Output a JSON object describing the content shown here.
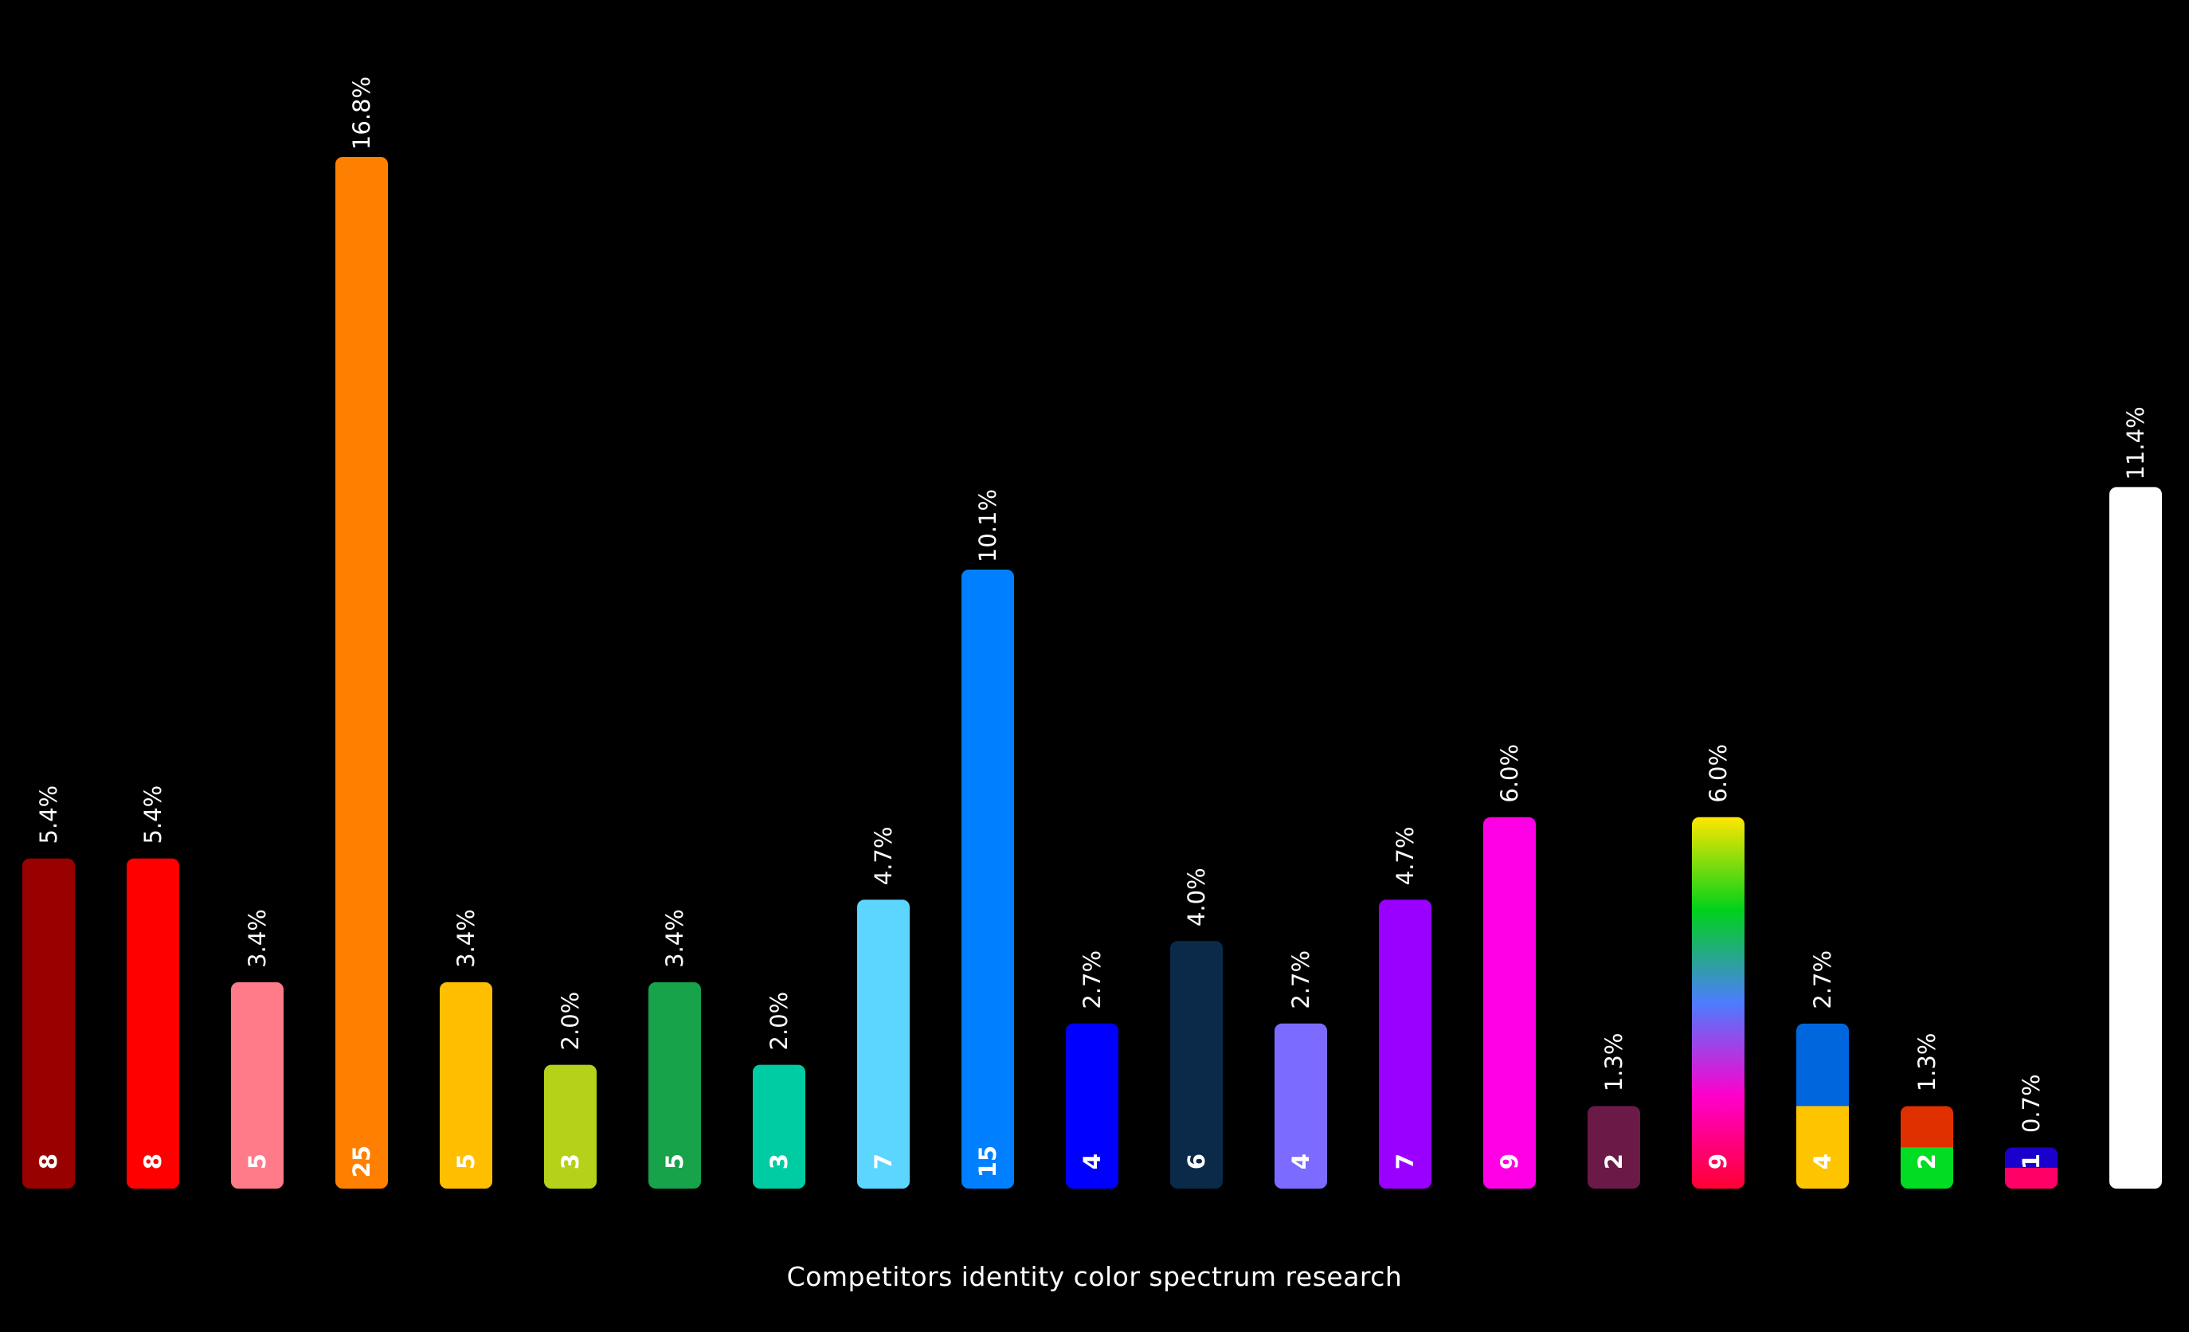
{
  "chart_data": {
    "type": "bar",
    "title": "Competitors identity color spectrum research",
    "xlabel": "",
    "ylabel": "",
    "ylim": [
      0,
      25
    ],
    "grid": false,
    "legend": "none",
    "bars": [
      {
        "value": 8,
        "label": "8",
        "percent": "5.4%",
        "fill": [
          "#990000"
        ]
      },
      {
        "value": 8,
        "label": "8",
        "percent": "5.4%",
        "fill": [
          "#ff0000"
        ]
      },
      {
        "value": 5,
        "label": "5",
        "percent": "3.4%",
        "fill": [
          "#ff7b8a"
        ]
      },
      {
        "value": 25,
        "label": "25",
        "percent": "16.8%",
        "fill": [
          "#ff8000"
        ]
      },
      {
        "value": 5,
        "label": "5",
        "percent": "3.4%",
        "fill": [
          "#ffbf00"
        ]
      },
      {
        "value": 3,
        "label": "3",
        "percent": "2.0%",
        "fill": [
          "#b5d11a"
        ]
      },
      {
        "value": 5,
        "label": "5",
        "percent": "3.4%",
        "fill": [
          "#16a34a"
        ]
      },
      {
        "value": 3,
        "label": "3",
        "percent": "2.0%",
        "fill": [
          "#00cca3"
        ]
      },
      {
        "value": 7,
        "label": "7",
        "percent": "4.7%",
        "fill": [
          "#5cd6ff"
        ]
      },
      {
        "value": 15,
        "label": "15",
        "percent": "10.1%",
        "fill": [
          "#0080ff"
        ]
      },
      {
        "value": 4,
        "label": "4",
        "percent": "2.7%",
        "fill": [
          "#0000ff"
        ]
      },
      {
        "value": 6,
        "label": "6",
        "percent": "4.0%",
        "fill": [
          "#0b2a4a"
        ]
      },
      {
        "value": 4,
        "label": "4",
        "percent": "2.7%",
        "fill": [
          "#7b6cff"
        ]
      },
      {
        "value": 7,
        "label": "7",
        "percent": "4.7%",
        "fill": [
          "#9900ff"
        ]
      },
      {
        "value": 9,
        "label": "9",
        "percent": "6.0%",
        "fill": [
          "#ff00e6"
        ]
      },
      {
        "value": 2,
        "label": "2",
        "percent": "1.3%",
        "fill": [
          "#6b1a47"
        ]
      },
      {
        "value": 9,
        "label": "9",
        "percent": "6.0%",
        "fill": [
          "#ffe600",
          "#00d21a",
          "#4d7cff",
          "#ff00cc",
          "#ff0033"
        ],
        "fill_style": "gradient"
      },
      {
        "value": 4,
        "label": "4",
        "percent": "2.7%",
        "fill": [
          "#0066dd",
          "#ffc400"
        ],
        "fill_style": "split"
      },
      {
        "value": 2,
        "label": "2",
        "percent": "1.3%",
        "fill": [
          "#e03000",
          "#00dd22"
        ],
        "fill_style": "split"
      },
      {
        "value": 1,
        "label": "1",
        "percent": "0.7%",
        "fill": [
          "#1a00cc",
          "#ff0066"
        ],
        "fill_style": "split"
      },
      {
        "value": 17,
        "label": "",
        "percent": "11.4%",
        "fill": [
          "#ffffff"
        ]
      }
    ]
  }
}
